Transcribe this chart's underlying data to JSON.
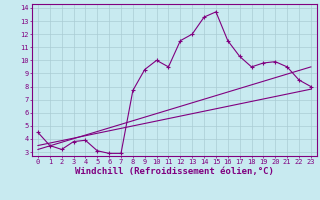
{
  "xlabel": "Windchill (Refroidissement éolien,°C)",
  "bg_color": "#c8eaf0",
  "line_color": "#800080",
  "grid_color": "#aaccd4",
  "xlim": [
    -0.5,
    23.5
  ],
  "ylim": [
    2.7,
    14.3
  ],
  "xticks": [
    0,
    1,
    2,
    3,
    4,
    5,
    6,
    7,
    8,
    9,
    10,
    11,
    12,
    13,
    14,
    15,
    16,
    17,
    18,
    19,
    20,
    21,
    22,
    23
  ],
  "yticks": [
    3,
    4,
    5,
    6,
    7,
    8,
    9,
    10,
    11,
    12,
    13,
    14
  ],
  "data_x": [
    0,
    1,
    2,
    3,
    4,
    5,
    6,
    7,
    8,
    9,
    10,
    11,
    12,
    13,
    14,
    15,
    16,
    17,
    18,
    19,
    20,
    21,
    22,
    23
  ],
  "data_y": [
    4.5,
    3.5,
    3.2,
    3.8,
    3.9,
    3.1,
    2.9,
    2.9,
    7.7,
    9.3,
    10.0,
    9.5,
    11.5,
    12.0,
    13.3,
    13.7,
    11.5,
    10.3,
    9.5,
    9.8,
    9.9,
    9.5,
    8.5,
    8.0
  ],
  "reg_line1_x": [
    0,
    23
  ],
  "reg_line1_y": [
    3.5,
    7.8
  ],
  "reg_line2_x": [
    0,
    23
  ],
  "reg_line2_y": [
    3.2,
    9.5
  ],
  "font_family": "monospace",
  "tick_fontsize": 5.0,
  "label_fontsize": 6.5
}
